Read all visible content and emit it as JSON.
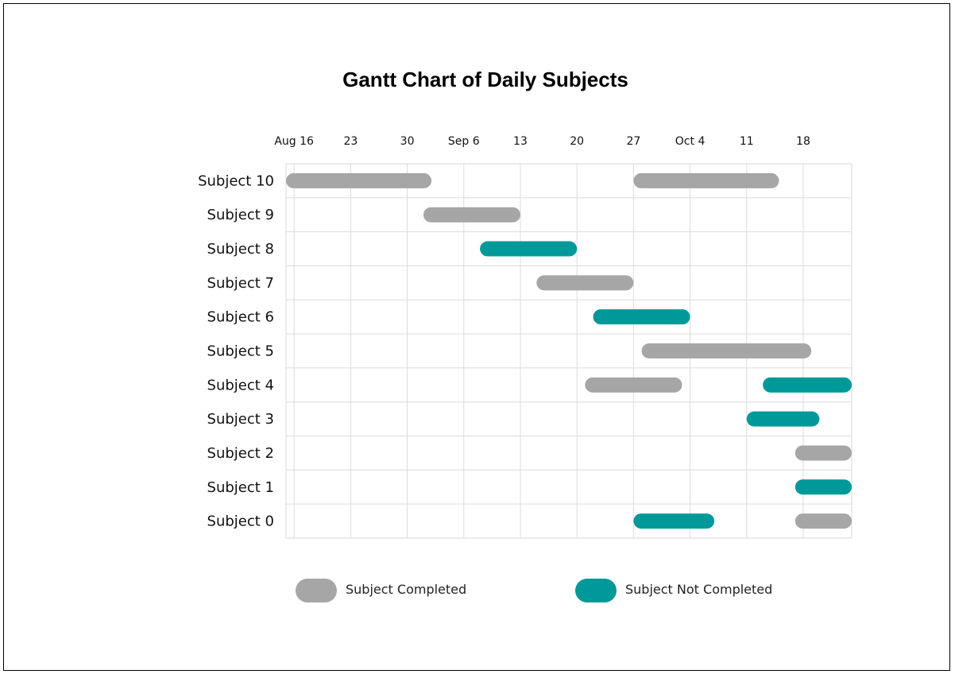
{
  "chart_data": {
    "type": "gantt",
    "title": "Gantt Chart of Daily Subjects",
    "x_axis": {
      "type": "date",
      "range": [
        "2020-08-15",
        "2020-10-24"
      ],
      "position": "top",
      "ticks": [
        {
          "date": "2020-08-16",
          "label": "Aug 16"
        },
        {
          "date": "2020-08-23",
          "label": "23"
        },
        {
          "date": "2020-08-30",
          "label": "30"
        },
        {
          "date": "2020-09-06",
          "label": "Sep 6"
        },
        {
          "date": "2020-09-13",
          "label": "13"
        },
        {
          "date": "2020-09-20",
          "label": "20"
        },
        {
          "date": "2020-09-27",
          "label": "27"
        },
        {
          "date": "2020-10-04",
          "label": "Oct 4"
        },
        {
          "date": "2020-10-11",
          "label": "11"
        },
        {
          "date": "2020-10-18",
          "label": "18"
        }
      ]
    },
    "rows": [
      "Subject 10",
      "Subject 9",
      "Subject 8",
      "Subject 7",
      "Subject 6",
      "Subject 5",
      "Subject 4",
      "Subject 3",
      "Subject 2",
      "Subject 1",
      "Subject 0"
    ],
    "grid": true,
    "legend_position": "bottom",
    "categories": [
      {
        "name": "Subject Completed",
        "color": "#a6a6a6"
      },
      {
        "name": "Subject Not Completed",
        "color": "#009999"
      }
    ],
    "tasks": [
      {
        "row": "Subject 10",
        "start": "2020-08-15",
        "end": "2020-09-02",
        "status": "Subject Completed"
      },
      {
        "row": "Subject 10",
        "start": "2020-09-27",
        "end": "2020-10-15",
        "status": "Subject Completed"
      },
      {
        "row": "Subject 9",
        "start": "2020-09-01",
        "end": "2020-09-13",
        "status": "Subject Completed"
      },
      {
        "row": "Subject 8",
        "start": "2020-09-08",
        "end": "2020-09-20",
        "status": "Subject Not Completed"
      },
      {
        "row": "Subject 7",
        "start": "2020-09-15",
        "end": "2020-09-27",
        "status": "Subject Completed"
      },
      {
        "row": "Subject 6",
        "start": "2020-09-22",
        "end": "2020-10-04",
        "status": "Subject Not Completed"
      },
      {
        "row": "Subject 5",
        "start": "2020-09-28",
        "end": "2020-10-19",
        "status": "Subject Completed"
      },
      {
        "row": "Subject 4",
        "start": "2020-09-21",
        "end": "2020-10-03",
        "status": "Subject Completed"
      },
      {
        "row": "Subject 4",
        "start": "2020-10-13",
        "end": "2020-10-24",
        "status": "Subject Not Completed"
      },
      {
        "row": "Subject 3",
        "start": "2020-10-11",
        "end": "2020-10-20",
        "status": "Subject Not Completed"
      },
      {
        "row": "Subject 2",
        "start": "2020-10-17",
        "end": "2020-10-24",
        "status": "Subject Completed"
      },
      {
        "row": "Subject 1",
        "start": "2020-10-17",
        "end": "2020-10-24",
        "status": "Subject Not Completed"
      },
      {
        "row": "Subject 0",
        "start": "2020-09-27",
        "end": "2020-10-07",
        "status": "Subject Not Completed"
      },
      {
        "row": "Subject 0",
        "start": "2020-10-17",
        "end": "2020-10-24",
        "status": "Subject Completed"
      }
    ]
  }
}
